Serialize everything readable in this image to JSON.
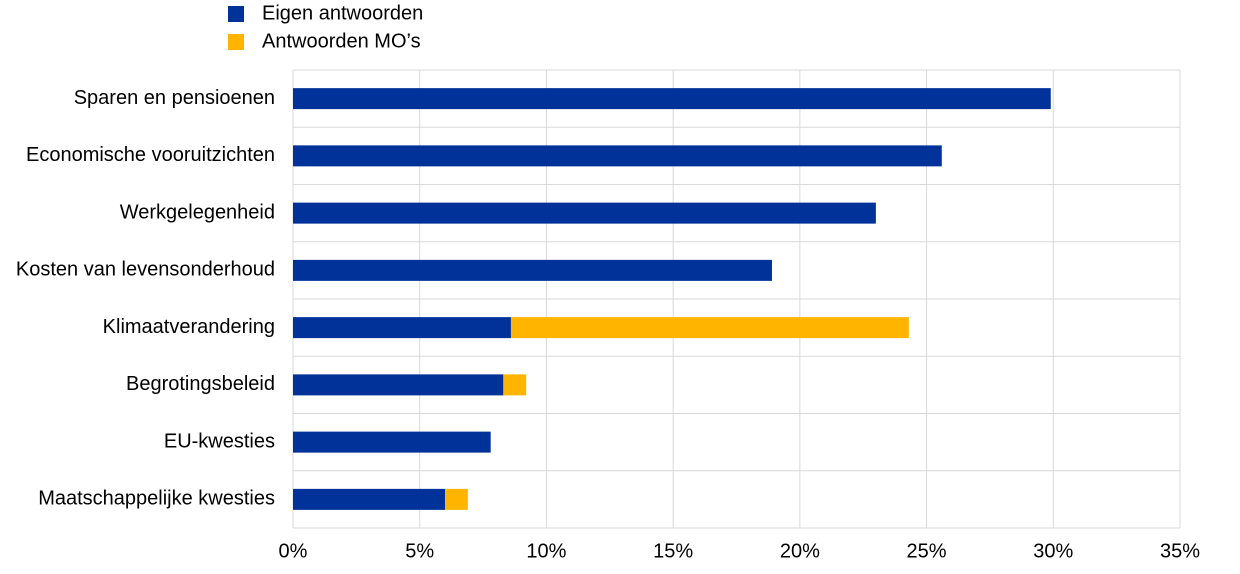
{
  "chart_data": {
    "type": "stacked-bar-horizontal",
    "categories": [
      "Sparen en pensioenen",
      "Economische vooruitzichten",
      "Werkgelegenheid",
      "Kosten van levensonderhoud",
      "Klimaatverandering",
      "Begrotingsbeleid",
      "EU-kwesties",
      "Maatschappelijke kwesties"
    ],
    "series": [
      {
        "name": "Eigen antwoorden",
        "color": "#003299",
        "values": [
          29.9,
          25.6,
          23.0,
          18.9,
          8.6,
          8.3,
          7.8,
          6.0
        ]
      },
      {
        "name": "Antwoorden MO’s",
        "color": "#ffb400",
        "values": [
          0,
          0,
          0,
          0,
          15.7,
          0.9,
          0,
          0.9
        ]
      }
    ],
    "xlim": [
      0,
      35
    ],
    "xticks": [
      {
        "value": 0,
        "label": "0%"
      },
      {
        "value": 5,
        "label": "5%"
      },
      {
        "value": 10,
        "label": "10%"
      },
      {
        "value": 15,
        "label": "15%"
      },
      {
        "value": 20,
        "label": "20%"
      },
      {
        "value": 25,
        "label": "25%"
      },
      {
        "value": 30,
        "label": "30%"
      },
      {
        "value": 35,
        "label": "35%"
      }
    ],
    "grid": true,
    "legend": "top-left"
  }
}
